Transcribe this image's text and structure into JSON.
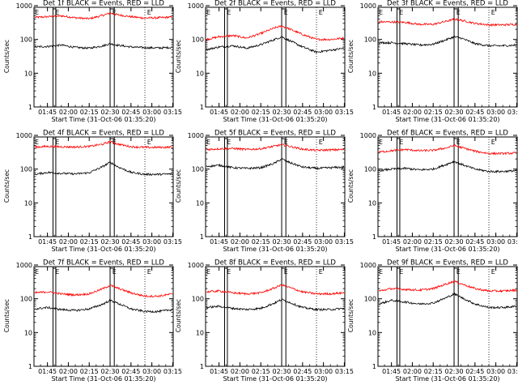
{
  "figure": {
    "background": "#ffffff",
    "axis_color": "#000000",
    "events_color": "#000000",
    "lld_color": "#ff0000"
  },
  "chart_data": [
    {
      "type": "line",
      "title": "Det 1f BLACK = Events, RED = LLD",
      "xlabel": "Start Time (31-Oct-06 01:35:20)",
      "ylabel": "Counts/sec",
      "xlim": [
        "01:35:20",
        "03:15:20"
      ],
      "ylim": [
        1,
        1000
      ],
      "yscale": "log",
      "xticks": [
        "01:45",
        "02:00",
        "02:15",
        "02:30",
        "02:45",
        "03:00",
        "03:15"
      ],
      "yticks": [
        "1",
        "10",
        "100",
        "1000"
      ],
      "markers": [
        {
          "label": "E",
          "time": "01:35"
        },
        {
          "label": "E",
          "time": "01:50"
        },
        {
          "label": "E",
          "time": "02:31"
        },
        {
          "label": "E",
          "time": "02:56"
        }
      ],
      "shaded_intervals": [
        [
          "01:49",
          "01:51"
        ],
        [
          "02:30",
          "02:33"
        ]
      ],
      "dotted_lines": [
        "02:55"
      ],
      "x": [
        "01:36",
        "01:45",
        "01:55",
        "02:05",
        "02:15",
        "02:25",
        "02:30",
        "02:35",
        "02:45",
        "02:55",
        "03:05",
        "03:15"
      ],
      "series": [
        {
          "name": "LLD",
          "color": "#ff0000",
          "values": [
            450,
            470,
            500,
            440,
            410,
            520,
            600,
            540,
            470,
            430,
            440,
            460
          ]
        },
        {
          "name": "Events",
          "color": "#000000",
          "values": [
            60,
            62,
            68,
            58,
            55,
            65,
            75,
            68,
            60,
            57,
            56,
            58
          ]
        }
      ]
    },
    {
      "type": "line",
      "title": "Det 2f BLACK = Events, RED = LLD",
      "xlabel": "Start Time (31-Oct-06 01:35:20)",
      "ylabel": "Counts/sec",
      "xlim": [
        "01:35:20",
        "03:15:20"
      ],
      "ylim": [
        1,
        1000
      ],
      "yscale": "log",
      "xticks": [
        "01:45",
        "02:00",
        "02:15",
        "02:30",
        "02:45",
        "03:00",
        "03:15"
      ],
      "yticks": [
        "1",
        "10",
        "100",
        "1000"
      ],
      "markers": [
        {
          "label": "E",
          "time": "01:35"
        },
        {
          "label": "E",
          "time": "01:50"
        },
        {
          "label": "E",
          "time": "02:31"
        },
        {
          "label": "E",
          "time": "02:56"
        }
      ],
      "shaded_intervals": [
        [
          "01:49",
          "01:51"
        ],
        [
          "02:30",
          "02:33"
        ]
      ],
      "dotted_lines": [
        "02:55"
      ],
      "x": [
        "01:36",
        "01:45",
        "01:55",
        "02:05",
        "02:15",
        "02:25",
        "02:30",
        "02:35",
        "02:45",
        "02:55",
        "03:05",
        "03:15"
      ],
      "series": [
        {
          "name": "LLD",
          "color": "#ff0000",
          "values": [
            100,
            120,
            130,
            110,
            150,
            220,
            250,
            210,
            140,
            100,
            100,
            110
          ]
        },
        {
          "name": "Events",
          "color": "#000000",
          "values": [
            50,
            60,
            65,
            55,
            70,
            100,
            120,
            95,
            60,
            42,
            48,
            55
          ]
        }
      ]
    },
    {
      "type": "line",
      "title": "Det 3f BLACK = Events, RED = LLD",
      "xlabel": "Start Time (31-Oct-06 01:35:20)",
      "ylabel": "Counts/sec",
      "xlim": [
        "01:35:20",
        "03:15:20"
      ],
      "ylim": [
        1,
        1000
      ],
      "yscale": "log",
      "xticks": [
        "01:45",
        "02:00",
        "02:15",
        "02:30",
        "02:45",
        "03:00",
        "03:15"
      ],
      "yticks": [
        "1",
        "10",
        "100",
        "1000"
      ],
      "markers": [
        {
          "label": "E",
          "time": "01:35"
        },
        {
          "label": "E",
          "time": "01:50"
        },
        {
          "label": "E",
          "time": "02:31"
        },
        {
          "label": "E",
          "time": "02:56"
        }
      ],
      "shaded_intervals": [
        [
          "01:49",
          "01:51"
        ],
        [
          "02:30",
          "02:33"
        ]
      ],
      "dotted_lines": [
        "02:55"
      ],
      "x": [
        "01:36",
        "01:45",
        "01:55",
        "02:05",
        "02:15",
        "02:25",
        "02:30",
        "02:35",
        "02:45",
        "02:55",
        "03:05",
        "03:15"
      ],
      "series": [
        {
          "name": "LLD",
          "color": "#ff0000",
          "values": [
            330,
            330,
            320,
            280,
            280,
            350,
            400,
            370,
            300,
            270,
            270,
            280
          ]
        },
        {
          "name": "Events",
          "color": "#000000",
          "values": [
            80,
            80,
            75,
            68,
            72,
            100,
            120,
            110,
            75,
            65,
            65,
            68
          ]
        }
      ]
    },
    {
      "type": "line",
      "title": "Det 4f BLACK = Events, RED = LLD",
      "xlabel": "Start Time (31-Oct-06 01:35:20)",
      "ylabel": "Counts/sec",
      "xlim": [
        "01:35:20",
        "03:15:20"
      ],
      "ylim": [
        1,
        1000
      ],
      "yscale": "log",
      "xticks": [
        "01:45",
        "02:00",
        "02:15",
        "02:30",
        "02:45",
        "03:00",
        "03:15"
      ],
      "yticks": [
        "1",
        "10",
        "100",
        "1000"
      ],
      "markers": [
        {
          "label": "E",
          "time": "01:35"
        },
        {
          "label": "E",
          "time": "01:50"
        },
        {
          "label": "E",
          "time": "02:31"
        },
        {
          "label": "E",
          "time": "02:56"
        }
      ],
      "shaded_intervals": [
        [
          "01:49",
          "01:51"
        ],
        [
          "02:30",
          "02:33"
        ]
      ],
      "dotted_lines": [
        "02:55"
      ],
      "x": [
        "01:36",
        "01:45",
        "01:55",
        "02:05",
        "02:15",
        "02:25",
        "02:30",
        "02:35",
        "02:45",
        "02:55",
        "03:05",
        "03:15"
      ],
      "series": [
        {
          "name": "LLD",
          "color": "#ff0000",
          "values": [
            450,
            470,
            460,
            450,
            470,
            550,
            650,
            560,
            460,
            440,
            440,
            450
          ]
        },
        {
          "name": "Events",
          "color": "#000000",
          "values": [
            70,
            80,
            75,
            72,
            78,
            120,
            160,
            120,
            80,
            70,
            70,
            72
          ]
        }
      ]
    },
    {
      "type": "line",
      "title": "Det 5f BLACK = Events, RED = LLD",
      "xlabel": "Start Time (31-Oct-06 01:35:20)",
      "ylabel": "Counts/sec",
      "xlim": [
        "01:35:20",
        "03:15:20"
      ],
      "ylim": [
        1,
        1000
      ],
      "yscale": "log",
      "xticks": [
        "01:45",
        "02:00",
        "02:15",
        "02:30",
        "02:45",
        "03:00",
        "03:15"
      ],
      "yticks": [
        "1",
        "10",
        "100",
        "1000"
      ],
      "markers": [
        {
          "label": "E",
          "time": "01:35"
        },
        {
          "label": "E",
          "time": "01:50"
        },
        {
          "label": "E",
          "time": "02:31"
        },
        {
          "label": "E",
          "time": "02:56"
        }
      ],
      "shaded_intervals": [
        [
          "01:49",
          "01:51"
        ],
        [
          "02:30",
          "02:33"
        ]
      ],
      "dotted_lines": [
        "02:55"
      ],
      "x": [
        "01:36",
        "01:45",
        "01:55",
        "02:05",
        "02:15",
        "02:25",
        "02:30",
        "02:35",
        "02:45",
        "02:55",
        "03:05",
        "03:15"
      ],
      "series": [
        {
          "name": "LLD",
          "color": "#ff0000",
          "values": [
            380,
            400,
            410,
            380,
            400,
            480,
            530,
            480,
            390,
            360,
            370,
            380
          ]
        },
        {
          "name": "Events",
          "color": "#000000",
          "values": [
            120,
            130,
            110,
            105,
            110,
            150,
            200,
            160,
            115,
            105,
            110,
            115
          ]
        }
      ]
    },
    {
      "type": "line",
      "title": "Det 6f BLACK = Events, RED = LLD",
      "xlabel": "Start Time (31-Oct-06 01:35:20)",
      "ylabel": "Counts/sec",
      "xlim": [
        "01:35:20",
        "03:15:20"
      ],
      "ylim": [
        1,
        1000
      ],
      "yscale": "log",
      "xticks": [
        "01:45",
        "02:00",
        "02:15",
        "02:30",
        "02:45",
        "03:00",
        "03:15"
      ],
      "yticks": [
        "1",
        "10",
        "100",
        "1000"
      ],
      "markers": [
        {
          "label": "E",
          "time": "01:35"
        },
        {
          "label": "E",
          "time": "01:50"
        },
        {
          "label": "E",
          "time": "02:31"
        },
        {
          "label": "E",
          "time": "02:56"
        }
      ],
      "shaded_intervals": [
        [
          "01:49",
          "01:51"
        ],
        [
          "02:30",
          "02:33"
        ]
      ],
      "dotted_lines": [
        "02:55"
      ],
      "x": [
        "01:36",
        "01:45",
        "01:55",
        "02:05",
        "02:15",
        "02:25",
        "02:30",
        "02:35",
        "02:45",
        "02:55",
        "03:05",
        "03:15"
      ],
      "series": [
        {
          "name": "LLD",
          "color": "#ff0000",
          "values": [
            320,
            350,
            380,
            350,
            360,
            430,
            500,
            440,
            340,
            290,
            290,
            300
          ]
        },
        {
          "name": "Events",
          "color": "#000000",
          "values": [
            90,
            100,
            105,
            95,
            100,
            140,
            170,
            140,
            100,
            85,
            85,
            90
          ]
        }
      ]
    },
    {
      "type": "line",
      "title": "Det 7f BLACK = Events, RED = LLD",
      "xlabel": "Start Time (31-Oct-06 01:35:20)",
      "ylabel": "Counts/sec",
      "xlim": [
        "01:35:20",
        "03:15:20"
      ],
      "ylim": [
        1,
        1000
      ],
      "yscale": "log",
      "xticks": [
        "01:45",
        "02:00",
        "02:15",
        "02:30",
        "02:45",
        "03:00",
        "03:15"
      ],
      "yticks": [
        "1",
        "10",
        "100",
        "1000"
      ],
      "markers": [
        {
          "label": "E",
          "time": "01:35"
        },
        {
          "label": "E",
          "time": "01:50"
        },
        {
          "label": "E",
          "time": "02:31"
        },
        {
          "label": "E",
          "time": "02:56"
        }
      ],
      "shaded_intervals": [
        [
          "01:49",
          "01:51"
        ],
        [
          "02:30",
          "02:33"
        ]
      ],
      "dotted_lines": [
        "02:55"
      ],
      "x": [
        "01:36",
        "01:45",
        "01:55",
        "02:05",
        "02:15",
        "02:25",
        "02:30",
        "02:35",
        "02:45",
        "02:55",
        "03:05",
        "03:15"
      ],
      "series": [
        {
          "name": "LLD",
          "color": "#ff0000",
          "values": [
            150,
            160,
            140,
            130,
            140,
            200,
            250,
            210,
            150,
            120,
            120,
            140
          ]
        },
        {
          "name": "Events",
          "color": "#000000",
          "values": [
            50,
            55,
            48,
            45,
            50,
            70,
            90,
            75,
            50,
            42,
            42,
            48
          ]
        }
      ]
    },
    {
      "type": "line",
      "title": "Det 8f BLACK = Events, RED = LLD",
      "xlabel": "Start Time (31-Oct-06 01:35:20)",
      "ylabel": "Counts/sec",
      "xlim": [
        "01:35:20",
        "03:15:20"
      ],
      "ylim": [
        1,
        1000
      ],
      "yscale": "log",
      "xticks": [
        "01:45",
        "02:00",
        "02:15",
        "02:30",
        "02:45",
        "03:00",
        "03:15"
      ],
      "yticks": [
        "1",
        "10",
        "100",
        "1000"
      ],
      "markers": [
        {
          "label": "E",
          "time": "01:35"
        },
        {
          "label": "E",
          "time": "01:50"
        },
        {
          "label": "E",
          "time": "02:31"
        },
        {
          "label": "E",
          "time": "02:56"
        }
      ],
      "shaded_intervals": [
        [
          "01:49",
          "01:51"
        ],
        [
          "02:30",
          "02:33"
        ]
      ],
      "dotted_lines": [
        "02:55"
      ],
      "x": [
        "01:36",
        "01:45",
        "01:55",
        "02:05",
        "02:15",
        "02:25",
        "02:30",
        "02:35",
        "02:45",
        "02:55",
        "03:05",
        "03:15"
      ],
      "series": [
        {
          "name": "LLD",
          "color": "#ff0000",
          "values": [
            160,
            170,
            150,
            140,
            150,
            210,
            260,
            220,
            160,
            140,
            140,
            150
          ]
        },
        {
          "name": "Events",
          "color": "#000000",
          "values": [
            55,
            60,
            52,
            48,
            52,
            75,
            95,
            80,
            55,
            48,
            48,
            52
          ]
        }
      ]
    },
    {
      "type": "line",
      "title": "Det 9f BLACK = Events, RED = LLD",
      "xlabel": "Start Time (31-Oct-06 01:35:20)",
      "ylabel": "Counts/sec",
      "xlim": [
        "01:35:20",
        "03:15:20"
      ],
      "ylim": [
        1,
        1000
      ],
      "yscale": "log",
      "xticks": [
        "01:45",
        "02:00",
        "02:15",
        "02:30",
        "02:45",
        "03:00",
        "03:15"
      ],
      "yticks": [
        "1",
        "10",
        "100",
        "1000"
      ],
      "markers": [
        {
          "label": "E",
          "time": "01:35"
        },
        {
          "label": "E",
          "time": "01:50"
        },
        {
          "label": "E",
          "time": "02:31"
        },
        {
          "label": "E",
          "time": "02:56"
        }
      ],
      "shaded_intervals": [
        [
          "01:49",
          "01:51"
        ],
        [
          "02:30",
          "02:33"
        ]
      ],
      "dotted_lines": [
        "02:55"
      ],
      "x": [
        "01:36",
        "01:45",
        "01:55",
        "02:05",
        "02:15",
        "02:25",
        "02:30",
        "02:35",
        "02:45",
        "02:55",
        "03:05",
        "03:15"
      ],
      "series": [
        {
          "name": "LLD",
          "color": "#ff0000",
          "values": [
            170,
            200,
            190,
            180,
            200,
            280,
            330,
            280,
            200,
            170,
            170,
            180
          ]
        },
        {
          "name": "Events",
          "color": "#000000",
          "values": [
            70,
            90,
            80,
            70,
            75,
            110,
            140,
            110,
            70,
            55,
            55,
            60
          ]
        }
      ]
    }
  ]
}
